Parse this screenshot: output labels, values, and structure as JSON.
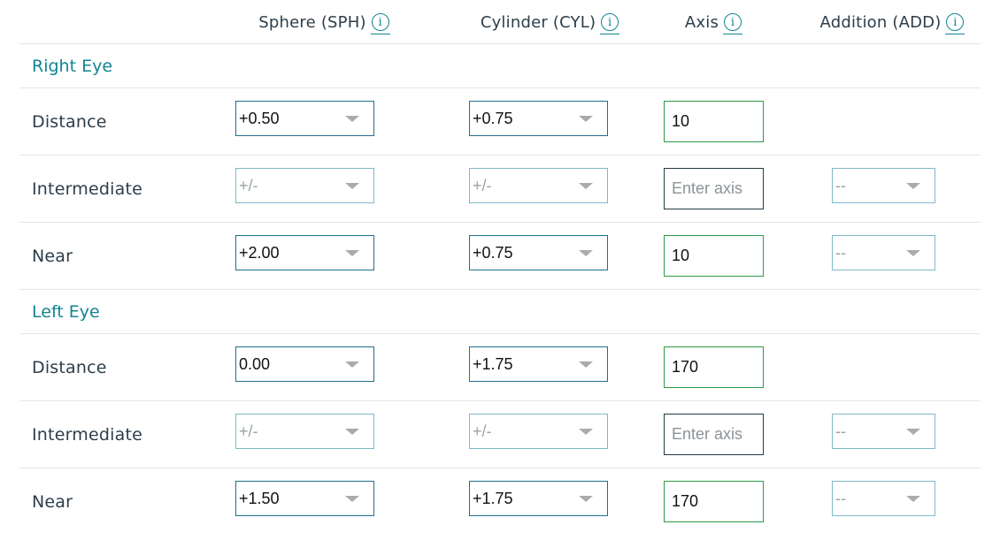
{
  "columns": [
    {
      "label": "Sphere (SPH)",
      "info_icon": "info-icon"
    },
    {
      "label": "Cylinder (CYL)",
      "info_icon": "info-icon"
    },
    {
      "label": "Axis",
      "info_icon": "info-icon"
    },
    {
      "label": "Addition (ADD)",
      "info_icon": "info-icon"
    }
  ],
  "info_glyph": "i",
  "right_eye": {
    "title": "Right Eye",
    "distance": {
      "label": "Distance",
      "sph": "+0.50",
      "cyl": "+0.75",
      "axis": "10"
    },
    "intermediate": {
      "label": "Intermediate",
      "sph": "+/-",
      "cyl": "+/-",
      "axis": "",
      "axis_placeholder": "Enter axis",
      "add": "--"
    },
    "near": {
      "label": "Near",
      "sph": "+2.00",
      "cyl": "+0.75",
      "axis": "10",
      "add": "--"
    }
  },
  "left_eye": {
    "title": "Left Eye",
    "distance": {
      "label": "Distance",
      "sph": "0.00",
      "cyl": "+1.75",
      "axis": "170"
    },
    "intermediate": {
      "label": "Intermediate",
      "sph": "+/-",
      "cyl": "+/-",
      "axis": "",
      "axis_placeholder": "Enter axis",
      "add": "--"
    },
    "near": {
      "label": "Near",
      "sph": "+1.50",
      "cyl": "+1.75",
      "axis": "170",
      "add": "--"
    }
  },
  "colors": {
    "accent": "#128494",
    "text": "#2c3e4a",
    "valid_border": "#2e9a45",
    "select_border": "#1e6f8a",
    "divider": "#e6e6e6"
  }
}
